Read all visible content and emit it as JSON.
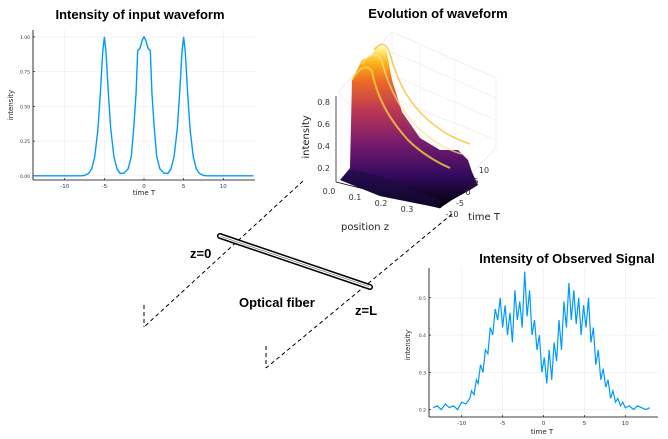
{
  "figure": {
    "input_title": "Intensity of input waveform",
    "evolution_title": "Evolution of  waveform",
    "observed_title": "Intensity of Observed Signal",
    "z0_label": "z=0",
    "zL_label": "z=L",
    "fiber_label": "Optical fiber"
  },
  "colors": {
    "series": "#009AFA",
    "fiber_inner": "#ffffff",
    "fiber_outer": "#000000"
  },
  "chart_data": [
    {
      "type": "line",
      "title": "Intensity of input waveform",
      "xlabel": "time T",
      "ylabel": "intensity",
      "xlim": [
        -14,
        14
      ],
      "ylim": [
        -0.03,
        1.05
      ],
      "xticks": [
        -10,
        -5,
        0,
        5,
        10
      ],
      "yticks": [
        0.0,
        0.25,
        0.5,
        0.75,
        1.0
      ],
      "ytick_labels": [
        "0.00",
        "0.25",
        "0.50",
        "0.75",
        "1.00"
      ],
      "grid": true,
      "series": [
        {
          "x": [
            -13.8,
            -9,
            -8,
            -7.5,
            -7,
            -6.6,
            -6.2,
            -5.8,
            -5.5,
            -5.2,
            -5,
            -4.8,
            -4.5,
            -4.2,
            -3.8,
            -3.4,
            -3,
            -2.5,
            -2,
            -1.6,
            -1.3,
            -1,
            -0.8,
            -0.5,
            -0.2,
            0,
            0.2,
            0.5,
            0.8,
            1,
            1.3,
            1.6,
            2,
            2.5,
            3,
            3.4,
            3.8,
            4.2,
            4.5,
            4.8,
            5,
            5.2,
            5.5,
            5.8,
            6.2,
            6.6,
            7,
            7.5,
            8,
            9,
            13.8
          ],
          "y": [
            0,
            0,
            0,
            0.003,
            0.017,
            0.05,
            0.14,
            0.34,
            0.6,
            0.9,
            1,
            0.9,
            0.6,
            0.34,
            0.14,
            0.05,
            0.017,
            0.02,
            0.05,
            0.14,
            0.34,
            0.6,
            0.9,
            0.92,
            0.98,
            1,
            0.98,
            0.92,
            0.9,
            0.6,
            0.34,
            0.14,
            0.05,
            0.02,
            0.017,
            0.05,
            0.14,
            0.34,
            0.6,
            0.9,
            1,
            0.9,
            0.6,
            0.34,
            0.14,
            0.05,
            0.017,
            0.003,
            0,
            0,
            0
          ]
        }
      ]
    },
    {
      "type": "surface",
      "title": "Evolution of  waveform",
      "xlabel": "position z",
      "ylabel": "time T",
      "zlabel": "intensity",
      "xticks": [
        0.0,
        0.1,
        0.2,
        0.3
      ],
      "yticks": [
        -10,
        -5,
        0,
        5,
        10
      ],
      "zticks": [
        0.2,
        0.4,
        0.6,
        0.8
      ]
    },
    {
      "type": "line",
      "title": "Intensity of Observed Signal",
      "xlabel": "time T",
      "ylabel": "intensity",
      "xlim": [
        -14,
        14
      ],
      "ylim": [
        0.18,
        0.58
      ],
      "xticks": [
        -10,
        -5,
        0,
        5,
        10
      ],
      "yticks": [
        0.2,
        0.3,
        0.4,
        0.5
      ],
      "ytick_labels": [
        "0.2",
        "0.3",
        "0.4",
        "0.5"
      ],
      "grid": true,
      "series": [
        {
          "x": [
            -13.5,
            -13,
            -12.5,
            -12,
            -11.5,
            -11,
            -10.5,
            -10,
            -9.5,
            -9,
            -8.8,
            -8.5,
            -8.2,
            -8,
            -7.7,
            -7.4,
            -7.1,
            -6.8,
            -6.5,
            -6.2,
            -5.9,
            -5.6,
            -5.3,
            -5,
            -4.7,
            -4.4,
            -4.1,
            -3.8,
            -3.5,
            -3.2,
            -2.9,
            -2.6,
            -2.3,
            -2,
            -1.7,
            -1.4,
            -1.1,
            -0.8,
            -0.5,
            -0.2,
            0.1,
            0.4,
            0.7,
            1,
            1.3,
            1.6,
            1.9,
            2.2,
            2.5,
            2.8,
            3.1,
            3.4,
            3.7,
            4,
            4.3,
            4.6,
            4.9,
            5.2,
            5.5,
            5.8,
            6.1,
            6.4,
            6.7,
            7,
            7.3,
            7.6,
            7.9,
            8.2,
            8.5,
            8.8,
            9.1,
            9.4,
            9.7,
            10,
            10.5,
            11,
            11.5,
            12,
            12.5,
            13
          ],
          "y": [
            0.205,
            0.21,
            0.2,
            0.215,
            0.205,
            0.21,
            0.2,
            0.22,
            0.215,
            0.23,
            0.25,
            0.24,
            0.28,
            0.27,
            0.32,
            0.3,
            0.36,
            0.35,
            0.42,
            0.4,
            0.47,
            0.44,
            0.5,
            0.42,
            0.48,
            0.4,
            0.46,
            0.38,
            0.52,
            0.44,
            0.49,
            0.42,
            0.57,
            0.45,
            0.52,
            0.4,
            0.44,
            0.36,
            0.4,
            0.3,
            0.34,
            0.27,
            0.36,
            0.28,
            0.38,
            0.33,
            0.44,
            0.36,
            0.49,
            0.42,
            0.54,
            0.44,
            0.52,
            0.43,
            0.5,
            0.4,
            0.48,
            0.42,
            0.5,
            0.38,
            0.42,
            0.32,
            0.36,
            0.28,
            0.31,
            0.26,
            0.28,
            0.23,
            0.25,
            0.22,
            0.23,
            0.21,
            0.22,
            0.205,
            0.21,
            0.2,
            0.21,
            0.205,
            0.2,
            0.205
          ]
        }
      ]
    }
  ]
}
